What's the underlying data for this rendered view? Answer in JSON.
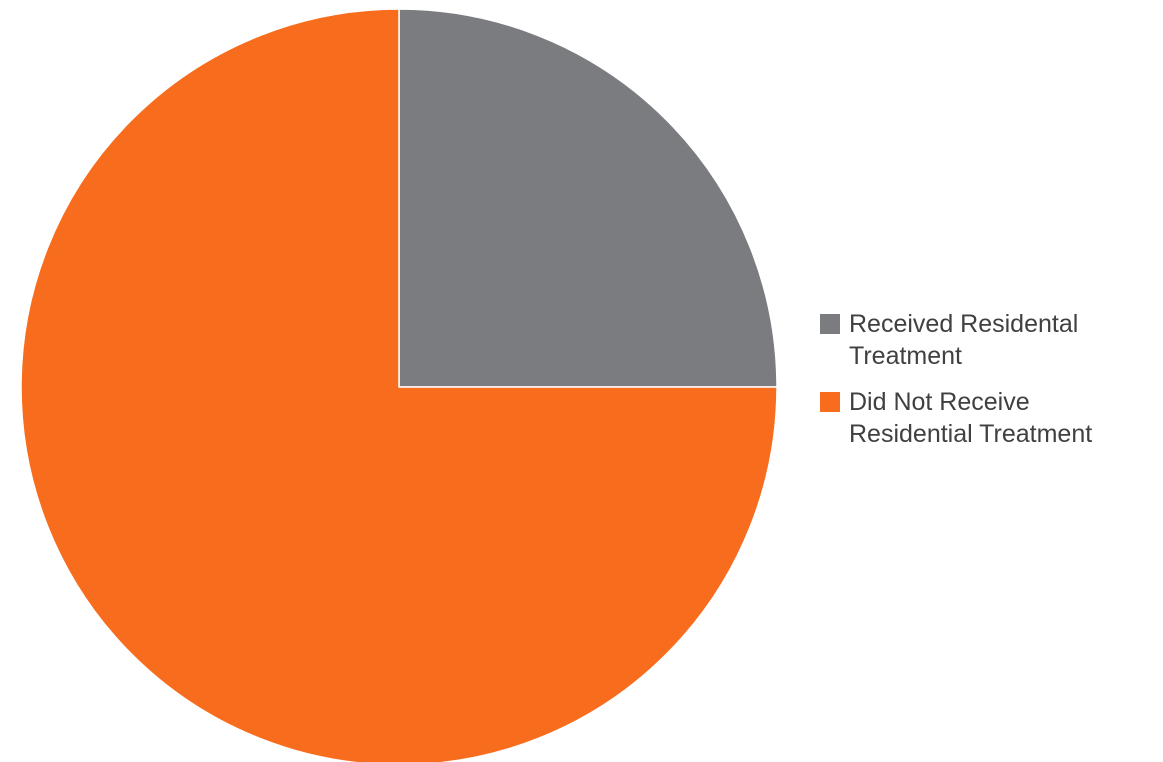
{
  "chart_data": {
    "type": "pie",
    "title": "",
    "start_angle_deg": 0,
    "direction": "clockwise",
    "series": [
      {
        "values": [
          25,
          75
        ],
        "categories": [
          "Received Residental Treatment",
          "Did Not Receive Residential Treatment"
        ],
        "colors": [
          "#7b7c80",
          "#f86c1d"
        ]
      }
    ],
    "legend": {
      "position": "right",
      "items": [
        {
          "label": "Received Residental Treatment",
          "color": "#7b7c80"
        },
        {
          "label": "Did Not Receive Residential Treatment",
          "color": "#f86c1d"
        }
      ]
    }
  }
}
